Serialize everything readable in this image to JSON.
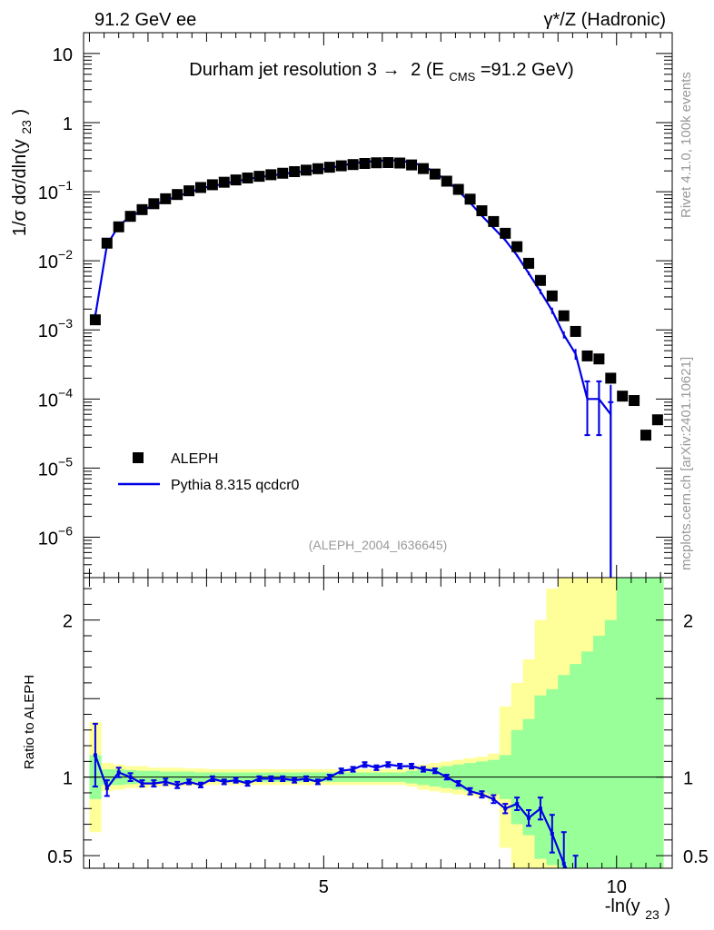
{
  "header": {
    "left": "91.2 GeV ee",
    "right": "γ*/Z (Hadronic)"
  },
  "side_labels": {
    "rivet": "Rivet 4.1.0,  100k events",
    "mcplots": "mcplots.cern.ch [arXiv:2401.10621]"
  },
  "colors": {
    "data": "#000000",
    "mc": "#0000e6",
    "band_inner": "#99ff99",
    "band_outer": "#ffff99",
    "watermark": "#999999"
  },
  "chart_data": [
    {
      "type": "scatter",
      "panel": "main",
      "title": "Durham jet resolution 3→ 2 (E_CMS=91.2 GeV)",
      "title_parts": {
        "pre": "Durham jet resolution 3",
        "arrow": "→",
        "mid": "2 (E",
        "sub": "CMS",
        "post": "=91.2 GeV)"
      },
      "ylabel": "1/σ dσ/dln(y_23)",
      "ylabel_parts": {
        "pre": "1/σ  dσ/dln(y",
        "sub": "23",
        "post": ")"
      },
      "yscale": "log",
      "ylim": [
        2.6e-07,
        20
      ],
      "xlim": [
        0.9,
        10.95
      ],
      "y_tick_labels": [
        {
          "base": "10",
          "exp": "",
          "v": 10
        },
        {
          "base": "1",
          "exp": "",
          "v": 1
        },
        {
          "base": "10",
          "exp": "−1",
          "v": 0.1
        },
        {
          "base": "10",
          "exp": "−2",
          "v": 0.01
        },
        {
          "base": "10",
          "exp": "−3",
          "v": 0.001
        },
        {
          "base": "10",
          "exp": "−4",
          "v": 0.0001
        },
        {
          "base": "10",
          "exp": "−5",
          "v": 1e-05
        },
        {
          "base": "10",
          "exp": "−6",
          "v": 1e-06
        }
      ],
      "watermark": "(ALEPH_2004_I636645)",
      "legend": [
        {
          "label": "ALEPH",
          "kind": "marker"
        },
        {
          "label": "Pythia 8.315 qcdcr0",
          "kind": "line"
        }
      ],
      "series": [
        {
          "name": "ALEPH",
          "x": [
            1.1,
            1.3,
            1.5,
            1.7,
            1.9,
            2.1,
            2.3,
            2.5,
            2.7,
            2.9,
            3.1,
            3.3,
            3.5,
            3.7,
            3.9,
            4.1,
            4.3,
            4.5,
            4.7,
            4.9,
            5.1,
            5.3,
            5.5,
            5.7,
            5.9,
            6.1,
            6.3,
            6.5,
            6.7,
            6.9,
            7.1,
            7.3,
            7.5,
            7.7,
            7.9,
            8.1,
            8.3,
            8.5,
            8.7,
            8.9,
            9.1,
            9.3,
            9.5,
            9.7,
            9.9,
            10.1,
            10.3,
            10.5,
            10.7
          ],
          "y": [
            0.0014,
            0.018,
            0.031,
            0.044,
            0.055,
            0.067,
            0.079,
            0.091,
            0.103,
            0.115,
            0.126,
            0.137,
            0.148,
            0.158,
            0.167,
            0.176,
            0.185,
            0.195,
            0.205,
            0.215,
            0.226,
            0.237,
            0.247,
            0.256,
            0.262,
            0.264,
            0.26,
            0.244,
            0.216,
            0.18,
            0.142,
            0.108,
            0.078,
            0.053,
            0.037,
            0.025,
            0.016,
            0.0092,
            0.0052,
            0.0031,
            0.0016,
            0.00095,
            0.00042,
            0.00038,
            0.0002,
            0.00011,
            9.5e-05,
            3e-05,
            5e-05
          ]
        },
        {
          "name": "Pythia 8.315 qcdcr0",
          "x": [
            1.1,
            1.3,
            1.5,
            1.7,
            1.9,
            2.1,
            2.3,
            2.5,
            2.7,
            2.9,
            3.1,
            3.3,
            3.5,
            3.7,
            3.9,
            4.1,
            4.3,
            4.5,
            4.7,
            4.9,
            5.1,
            5.3,
            5.5,
            5.7,
            5.9,
            6.1,
            6.3,
            6.5,
            6.7,
            6.9,
            7.1,
            7.3,
            7.5,
            7.7,
            7.9,
            8.1,
            8.3,
            8.5,
            8.7,
            8.9,
            9.1,
            9.3,
            9.5,
            9.7,
            9.9
          ],
          "y": [
            0.0016,
            0.017,
            0.032,
            0.044,
            0.053,
            0.064,
            0.074,
            0.086,
            0.097,
            0.112,
            0.121,
            0.13,
            0.141,
            0.152,
            0.162,
            0.171,
            0.18,
            0.19,
            0.197,
            0.205,
            0.22,
            0.238,
            0.257,
            0.272,
            0.276,
            0.286,
            0.282,
            0.264,
            0.235,
            0.19,
            0.144,
            0.103,
            0.069,
            0.045,
            0.03,
            0.02,
            0.012,
            0.0066,
            0.0036,
            0.0019,
            0.00085,
            0.00045,
            0.0001,
            0.0001,
            6e-05
          ],
          "yerr": [
            0.00015,
            0.0004,
            0.0005,
            0.0006,
            0.0006,
            0.0007,
            0.0008,
            0.0009,
            0.001,
            0.0011,
            0.0012,
            0.0012,
            0.0013,
            0.0014,
            0.0015,
            0.0015,
            0.0016,
            0.0017,
            0.0017,
            0.0018,
            0.0019,
            0.002,
            0.0021,
            0.0022,
            0.0022,
            0.0023,
            0.0023,
            0.0022,
            0.0021,
            0.0019,
            0.0016,
            0.0013,
            0.001,
            0.0008,
            0.0007,
            0.0006,
            0.0005,
            0.0004,
            0.0003,
            0.0002,
            0.0001,
            8e-05,
            7e-05,
            7e-05,
            0.0001
          ]
        }
      ]
    },
    {
      "type": "line",
      "panel": "ratio",
      "ylabel": "Ratio to ALEPH",
      "xlabel": "-ln(y_23)",
      "xlabel_parts": {
        "pre": "-ln(y",
        "sub": "23",
        "post": ")"
      },
      "ylim": [
        0.42,
        2.27
      ],
      "xlim": [
        0.9,
        10.95
      ],
      "x_ticks": [
        5,
        10
      ],
      "x_tick_labels": [
        "5",
        "10"
      ],
      "y_ticks": [
        0.5,
        1,
        2
      ],
      "y_tick_labels": [
        "0.5",
        "1",
        "2"
      ],
      "reference_line": 1,
      "bands": {
        "x_edges": [
          1.0,
          1.2,
          1.4,
          1.6,
          1.8,
          2.0,
          2.2,
          2.4,
          2.6,
          2.8,
          3.0,
          3.2,
          3.4,
          3.6,
          3.8,
          4.0,
          4.2,
          4.4,
          4.6,
          4.8,
          5.0,
          5.2,
          5.4,
          5.6,
          5.8,
          6.0,
          6.2,
          6.4,
          6.6,
          6.8,
          7.0,
          7.2,
          7.4,
          7.6,
          7.8,
          8.0,
          8.2,
          8.4,
          8.6,
          8.8,
          9.0,
          9.2,
          9.4,
          9.6,
          9.8,
          10.0,
          10.2,
          10.4,
          10.6,
          10.8
        ],
        "inner_half_width": [
          0.14,
          0.05,
          0.05,
          0.045,
          0.04,
          0.04,
          0.035,
          0.035,
          0.035,
          0.03,
          0.03,
          0.03,
          0.03,
          0.03,
          0.03,
          0.03,
          0.03,
          0.03,
          0.03,
          0.03,
          0.03,
          0.03,
          0.03,
          0.03,
          0.03,
          0.03,
          0.03,
          0.04,
          0.05,
          0.06,
          0.07,
          0.08,
          0.09,
          0.1,
          0.11,
          0.14,
          0.3,
          0.37,
          0.52,
          0.56,
          0.65,
          0.72,
          0.8,
          0.9,
          1.0,
          1.3,
          1.4,
          1.6,
          1.8
        ],
        "outer_half_width": [
          0.35,
          0.09,
          0.08,
          0.07,
          0.07,
          0.06,
          0.06,
          0.06,
          0.055,
          0.055,
          0.05,
          0.05,
          0.05,
          0.05,
          0.05,
          0.05,
          0.05,
          0.05,
          0.05,
          0.05,
          0.05,
          0.05,
          0.05,
          0.05,
          0.05,
          0.05,
          0.05,
          0.06,
          0.08,
          0.09,
          0.1,
          0.11,
          0.12,
          0.13,
          0.15,
          0.45,
          0.6,
          0.75,
          1.0,
          1.2,
          1.5,
          1.5,
          1.6,
          1.5,
          1.3,
          1.5,
          1.4,
          1.6,
          1.8
        ]
      },
      "series": [
        {
          "name": "Pythia 8.315 qcdcr0",
          "x": [
            1.1,
            1.3,
            1.5,
            1.7,
            1.9,
            2.1,
            2.3,
            2.5,
            2.7,
            2.9,
            3.1,
            3.3,
            3.5,
            3.7,
            3.9,
            4.1,
            4.3,
            4.5,
            4.7,
            4.9,
            5.1,
            5.3,
            5.5,
            5.7,
            5.9,
            6.1,
            6.3,
            6.5,
            6.7,
            6.9,
            7.1,
            7.3,
            7.5,
            7.7,
            7.9,
            8.1,
            8.3,
            8.5,
            8.7,
            8.9,
            9.1
          ],
          "y": [
            1.14,
            0.93,
            1.03,
            1.0,
            0.96,
            0.96,
            0.97,
            0.95,
            0.97,
            0.95,
            0.99,
            0.97,
            0.98,
            0.96,
            0.99,
            0.99,
            0.99,
            0.98,
            0.99,
            0.97,
            1.0,
            1.04,
            1.05,
            1.08,
            1.06,
            1.08,
            1.07,
            1.07,
            1.05,
            1.04,
            1.0,
            0.96,
            0.91,
            0.89,
            0.86,
            0.8,
            0.83,
            0.74,
            0.8,
            0.64,
            0.45
          ],
          "yerr": [
            0.2,
            0.05,
            0.03,
            0.025,
            0.02,
            0.02,
            0.02,
            0.02,
            0.015,
            0.015,
            0.015,
            0.015,
            0.015,
            0.015,
            0.015,
            0.015,
            0.015,
            0.015,
            0.015,
            0.015,
            0.015,
            0.015,
            0.015,
            0.015,
            0.015,
            0.015,
            0.015,
            0.015,
            0.015,
            0.015,
            0.015,
            0.015,
            0.02,
            0.02,
            0.025,
            0.03,
            0.04,
            0.05,
            0.07,
            0.12,
            0.2
          ]
        }
      ]
    }
  ]
}
